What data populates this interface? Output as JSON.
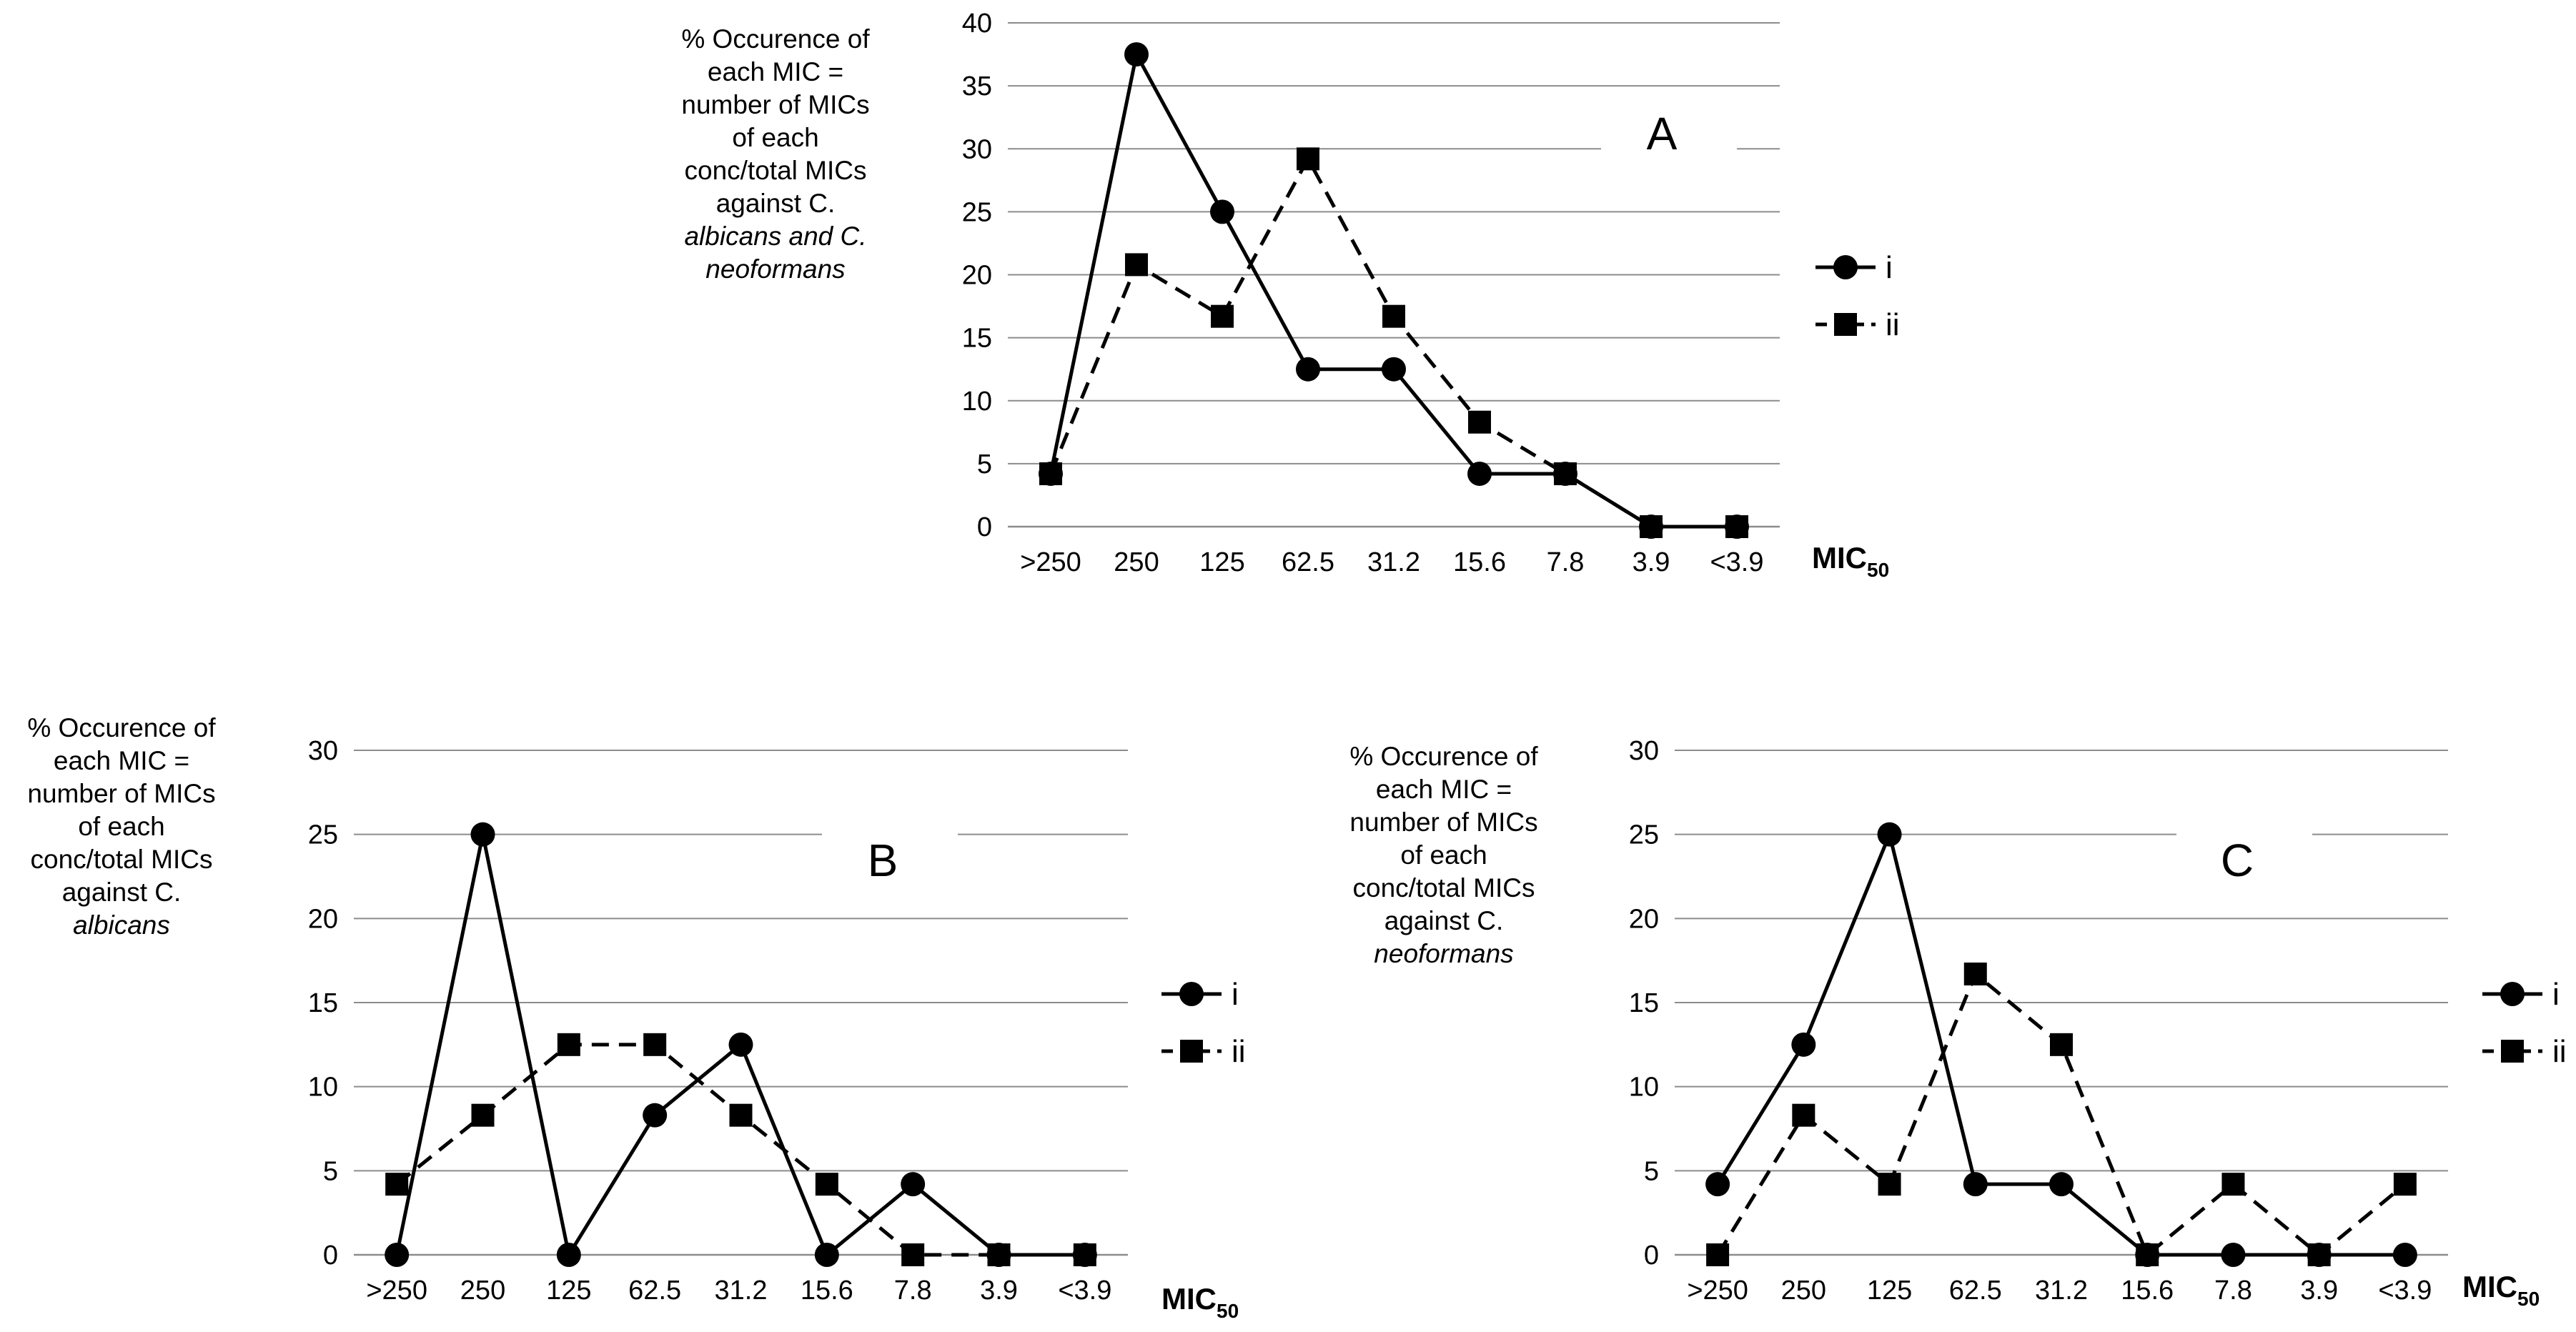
{
  "chart_data": [
    {
      "type": "line",
      "panel": "A",
      "title": "A",
      "categories": [
        ">250",
        "250",
        "125",
        "62.5",
        "31.2",
        "15.6",
        "7.8",
        "3.9",
        "<3.9"
      ],
      "series": [
        {
          "name": "i",
          "marker": "circle",
          "line": "solid",
          "values": [
            4.2,
            37.5,
            25,
            12.5,
            12.5,
            4.2,
            4.2,
            0,
            0
          ]
        },
        {
          "name": "ii",
          "marker": "square",
          "line": "dashed",
          "values": [
            4.2,
            20.8,
            16.7,
            29.2,
            16.7,
            8.3,
            4.2,
            0,
            0
          ]
        }
      ],
      "ylim": [
        0,
        40
      ],
      "yticks": [
        0,
        5,
        10,
        15,
        20,
        25,
        30,
        35,
        40
      ],
      "xlabel_main": "MIC",
      "xlabel_sub": "50",
      "ylabel_lines": [
        "% Occurence of",
        "each MIC =",
        "number of MICs",
        "of each",
        "conc/total MICs",
        "against C."
      ],
      "ylabel_italic_lines": [
        "albicans and C.",
        "neoformans"
      ],
      "legend_position": "right",
      "grid": true
    },
    {
      "type": "line",
      "panel": "B",
      "title": "B",
      "categories": [
        ">250",
        "250",
        "125",
        "62.5",
        "31.2",
        "15.6",
        "7.8",
        "3.9",
        "<3.9"
      ],
      "series": [
        {
          "name": "i",
          "marker": "circle",
          "line": "solid",
          "values": [
            0,
            25,
            0,
            8.3,
            12.5,
            0,
            4.2,
            0,
            0
          ]
        },
        {
          "name": "ii",
          "marker": "square",
          "line": "dashed",
          "values": [
            4.2,
            8.3,
            12.5,
            12.5,
            8.3,
            4.2,
            0,
            0,
            0
          ]
        }
      ],
      "ylim": [
        0,
        30
      ],
      "yticks": [
        0,
        5,
        10,
        15,
        20,
        25,
        30
      ],
      "xlabel_main": "MIC",
      "xlabel_sub": "50",
      "ylabel_lines": [
        "% Occurence of",
        "each MIC =",
        "number of MICs",
        "of each",
        "conc/total MICs",
        "against C."
      ],
      "ylabel_italic_lines": [
        "albicans"
      ],
      "legend_position": "right",
      "grid": true
    },
    {
      "type": "line",
      "panel": "C",
      "title": "C",
      "categories": [
        ">250",
        "250",
        "125",
        "62.5",
        "31.2",
        "15.6",
        "7.8",
        "3.9",
        "<3.9"
      ],
      "series": [
        {
          "name": "i",
          "marker": "circle",
          "line": "solid",
          "values": [
            4.2,
            12.5,
            25,
            4.2,
            4.2,
            0,
            0,
            0,
            0
          ]
        },
        {
          "name": "ii",
          "marker": "square",
          "line": "dashed",
          "values": [
            0,
            8.3,
            4.2,
            16.7,
            12.5,
            0,
            4.2,
            0,
            4.2
          ]
        }
      ],
      "ylim": [
        0,
        30
      ],
      "yticks": [
        0,
        5,
        10,
        15,
        20,
        25,
        30
      ],
      "xlabel_main": "MIC",
      "xlabel_sub": "50",
      "ylabel_lines": [
        "% Occurence of",
        "each MIC =",
        "number of MICs",
        "of each",
        "conc/total MICs",
        "against C."
      ],
      "ylabel_italic_lines": [
        "neoformans"
      ],
      "legend_position": "right",
      "grid": true
    }
  ]
}
